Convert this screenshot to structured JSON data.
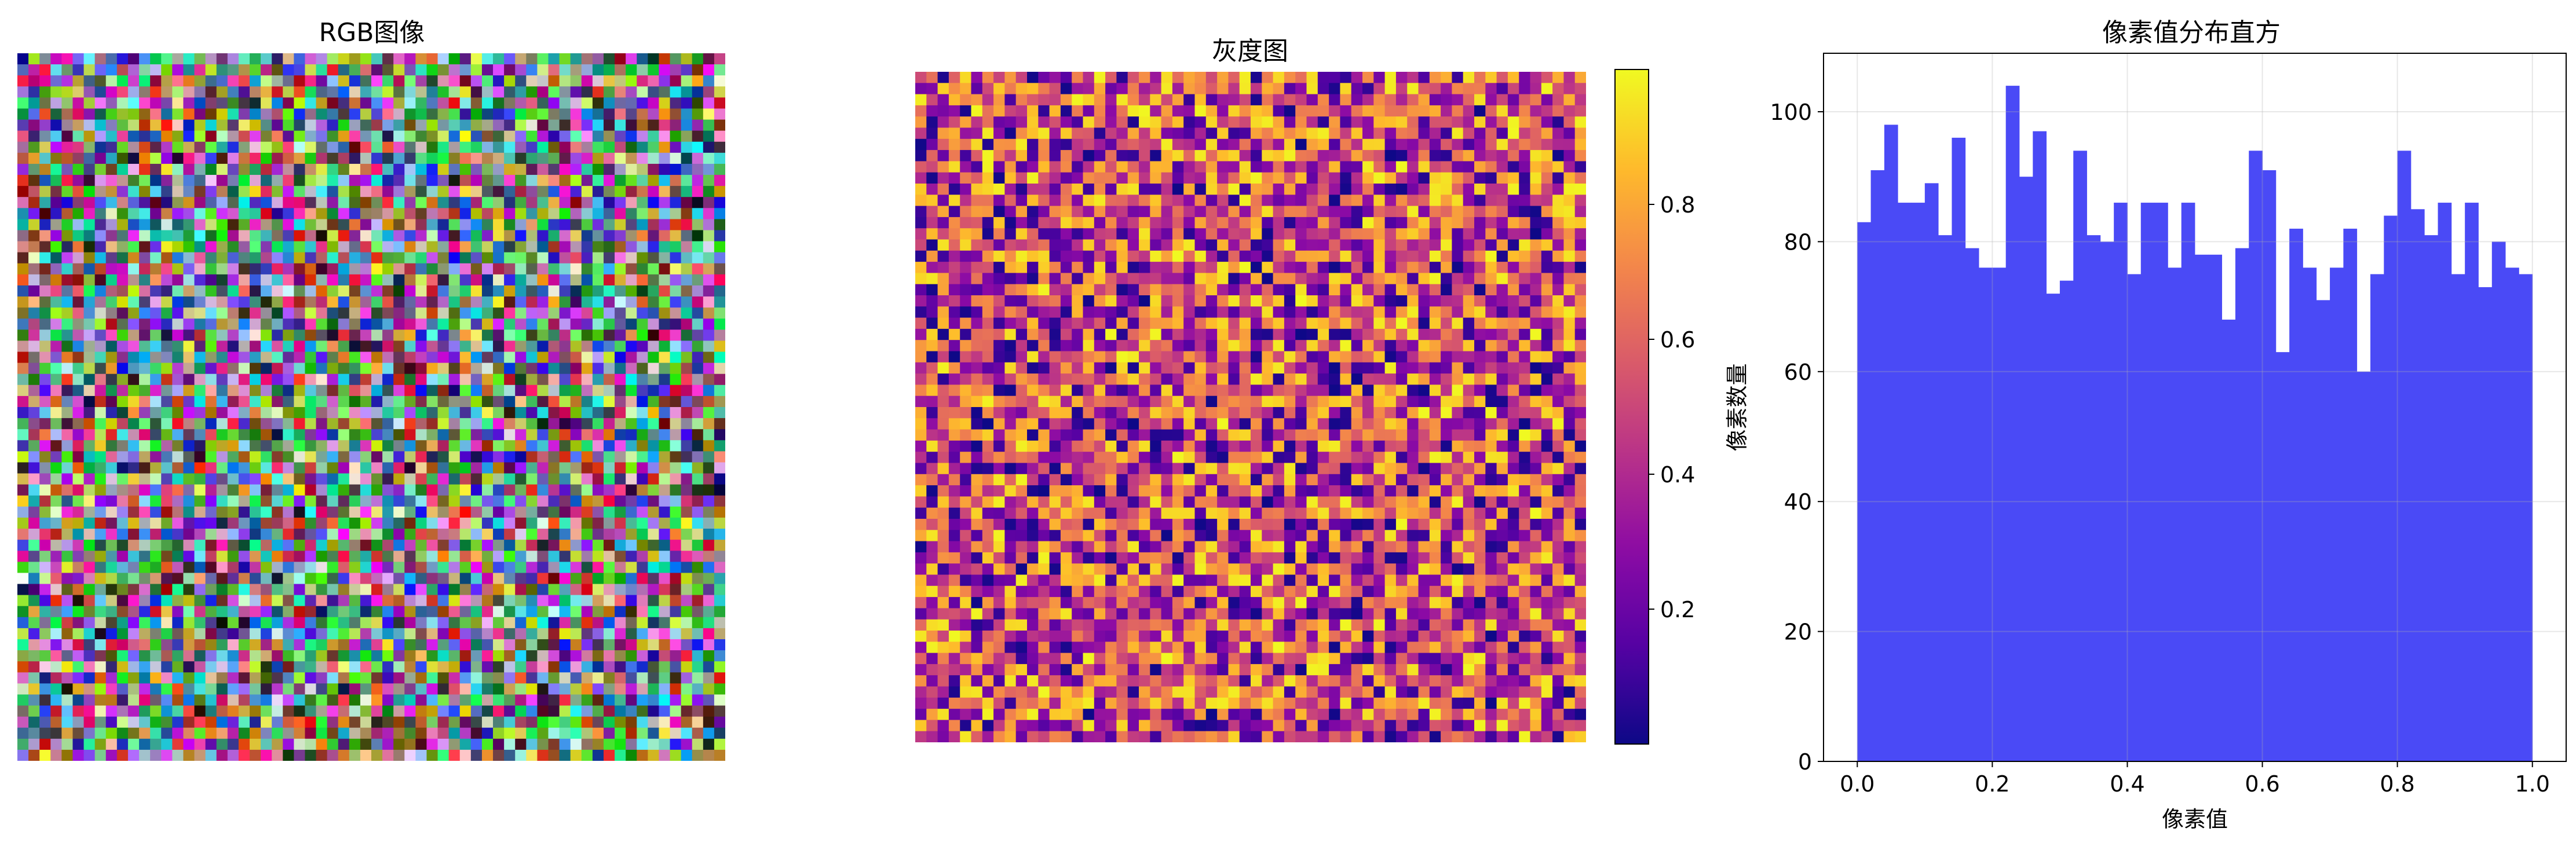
{
  "chart_data": [
    {
      "type": "heatmap",
      "title": "RGB图像",
      "grid_size": [
        64,
        64
      ],
      "rgb": true,
      "value_range": [
        0,
        1
      ],
      "axis_visible": false
    },
    {
      "type": "heatmap",
      "title": "灰度图",
      "grid_size": [
        60,
        60
      ],
      "colormap": "plasma",
      "value_range": [
        0.0,
        1.0
      ],
      "colorbar_ticks": [
        "0.2",
        "0.4",
        "0.6",
        "0.8"
      ],
      "colorbar_tick_values": [
        0.2,
        0.4,
        0.6,
        0.8
      ],
      "axis_visible": false
    },
    {
      "type": "bar",
      "subtype": "histogram",
      "title": "像素值分布直方",
      "xlabel": "像素值",
      "ylabel": "像素数量",
      "xlim": [
        -0.05,
        1.05
      ],
      "ylim": [
        0,
        109
      ],
      "xticks": [
        "0.0",
        "0.2",
        "0.4",
        "0.6",
        "0.8",
        "1.0"
      ],
      "xtick_values": [
        0.0,
        0.2,
        0.4,
        0.6,
        0.8,
        1.0
      ],
      "yticks": [
        "0",
        "20",
        "40",
        "60",
        "80",
        "100"
      ],
      "ytick_values": [
        0,
        20,
        40,
        60,
        80,
        100
      ],
      "grid": true,
      "bar_color": "#4a4af6",
      "bin_range": [
        0,
        1
      ],
      "values": [
        83,
        91,
        98,
        86,
        86,
        89,
        81,
        96,
        79,
        76,
        76,
        104,
        90,
        97,
        72,
        74,
        94,
        81,
        80,
        86,
        75,
        86,
        86,
        76,
        86,
        78,
        78,
        68,
        79,
        94,
        91,
        63,
        82,
        76,
        71,
        76,
        82,
        60,
        75,
        84,
        94,
        85,
        81,
        86,
        75,
        86,
        73,
        80,
        76,
        75
      ]
    }
  ]
}
